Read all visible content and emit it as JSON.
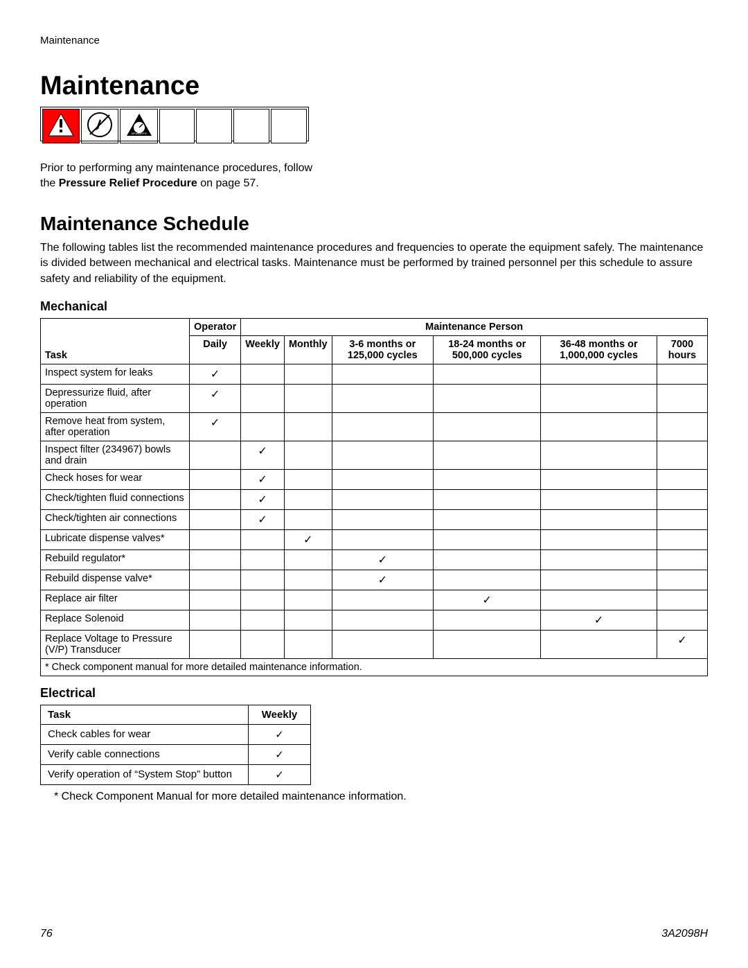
{
  "header_label": "Maintenance",
  "main_title": "Maintenance",
  "intro": {
    "line1": "Prior to performing any maintenance procedures, follow",
    "line2_prefix": "the ",
    "line2_bold": "Pressure Relief Procedure",
    "line2_suffix": " on page 57."
  },
  "schedule": {
    "title": "Maintenance Schedule",
    "desc": "The following tables list the recommended maintenance procedures and frequencies to operate the equipment safely. The maintenance is divided between mechanical and electrical tasks. Maintenance must be performed by trained personnel per this schedule to assure safety and reliability of the equipment."
  },
  "mechanical": {
    "heading": "Mechanical",
    "group_left": "Operator",
    "group_right": "Maintenance Person",
    "cols": {
      "task": "Task",
      "c1": "Daily",
      "c2": "Weekly",
      "c3": "Monthly",
      "c4": "3-6 months or 125,000 cycles",
      "c5": "18-24 months or 500,000 cycles",
      "c6": "36-48 months or 1,000,000 cycles",
      "c7": "7000 hours"
    },
    "rows": [
      {
        "task": "Inspect system for leaks",
        "c": 1
      },
      {
        "task": "Depressurize fluid, after operation",
        "c": 1
      },
      {
        "task": "Remove heat from system, after operation",
        "c": 1
      },
      {
        "task": "Inspect filter (234967) bowls and drain",
        "c": 2
      },
      {
        "task": "Check hoses for wear",
        "c": 2
      },
      {
        "task": "Check/tighten fluid connections",
        "c": 2
      },
      {
        "task": "Check/tighten air connections",
        "c": 2
      },
      {
        "task": "Lubricate dispense valves*",
        "c": 3
      },
      {
        "task": "Rebuild regulator*",
        "c": 4
      },
      {
        "task": "Rebuild dispense valve*",
        "c": 4
      },
      {
        "task": "Replace air filter",
        "c": 5
      },
      {
        "task": "Replace Solenoid",
        "c": 6
      },
      {
        "task": "Replace Voltage to Pressure (V/P) Transducer",
        "c": 7
      }
    ],
    "footnote": "* Check component manual for more detailed maintenance information."
  },
  "electrical": {
    "heading": "Electrical",
    "cols": {
      "task": "Task",
      "c1": "Weekly"
    },
    "rows": [
      {
        "task": "Check cables for wear"
      },
      {
        "task": "Verify cable connections"
      },
      {
        "task": "Verify operation of “System Stop” button"
      }
    ],
    "note": "* Check Component Manual for more detailed maintenance information."
  },
  "footer": {
    "page": "76",
    "doc": "3A2098H"
  },
  "checkmark": "✓",
  "colors": {
    "warning_bg": "#ff0000",
    "page_bg": "#ffffff",
    "text": "#000000"
  }
}
